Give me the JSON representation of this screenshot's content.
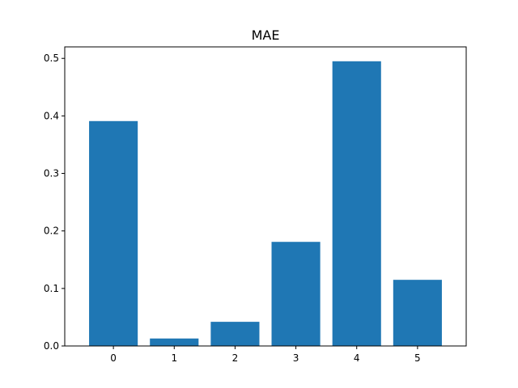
{
  "chart_data": {
    "type": "bar",
    "title": "MAE",
    "xlabel": "",
    "ylabel": "",
    "categories": [
      "0",
      "1",
      "2",
      "3",
      "4",
      "5"
    ],
    "values": [
      0.391,
      0.013,
      0.042,
      0.181,
      0.495,
      0.115
    ],
    "xlim": [
      -0.8,
      5.8
    ],
    "ylim": [
      0,
      0.52
    ],
    "yticks": [
      0.0,
      0.1,
      0.2,
      0.3,
      0.4,
      0.5
    ],
    "ytick_labels": [
      "0.0",
      "0.1",
      "0.2",
      "0.3",
      "0.4",
      "0.5"
    ],
    "bar_color": "#1f77b4",
    "grid": false,
    "legend": "none"
  }
}
